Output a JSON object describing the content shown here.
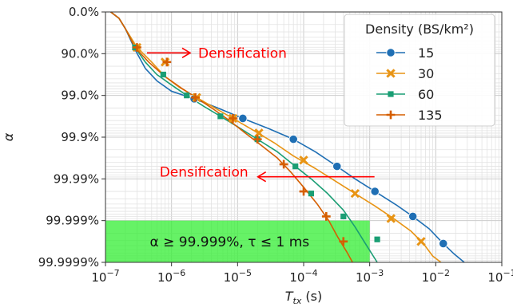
{
  "chart_data": {
    "type": "line",
    "xlabel": "T_tx (s)",
    "ylabel": "α",
    "x_scale": "log",
    "xlim": [
      1e-07,
      0.1
    ],
    "x_ticks": [
      {
        "value": 1e-07,
        "base": "10",
        "exp": "−7"
      },
      {
        "value": 1e-06,
        "base": "10",
        "exp": "−6"
      },
      {
        "value": 1e-05,
        "base": "10",
        "exp": "−5"
      },
      {
        "value": 0.0001,
        "base": "10",
        "exp": "−4"
      },
      {
        "value": 0.001,
        "base": "10",
        "exp": "−3"
      },
      {
        "value": 0.01,
        "base": "10",
        "exp": "−2"
      },
      {
        "value": 0.1,
        "base": "10",
        "exp": "−1"
      }
    ],
    "y_scale": "reliability (nines)",
    "ylim": [
      0,
      6
    ],
    "y_ticks": [
      {
        "value": 0,
        "label": "0.0%"
      },
      {
        "value": 1,
        "label": "90.0%"
      },
      {
        "value": 2,
        "label": "99.0%"
      },
      {
        "value": 3,
        "label": "99.9%"
      },
      {
        "value": 4,
        "label": "99.99%"
      },
      {
        "value": 5,
        "label": "99.999%"
      },
      {
        "value": 6,
        "label": "99.9999%"
      }
    ],
    "grid": true,
    "legend": {
      "title": "Density (BS/km²)",
      "position": "top-right"
    },
    "series": [
      {
        "name": "15",
        "color": "#1f6fb4",
        "marker": "circle",
        "points": [
          [
            1.2e-07,
            0.0
          ],
          [
            1.6e-07,
            0.15
          ],
          [
            2e-07,
            0.4
          ],
          [
            2.8e-07,
            0.9
          ],
          [
            4e-07,
            1.35
          ],
          [
            6e-07,
            1.65
          ],
          [
            1e-06,
            1.9
          ],
          [
            2.2e-06,
            2.08
          ],
          [
            5e-06,
            2.3
          ],
          [
            1.2e-05,
            2.55
          ],
          [
            3e-05,
            2.8
          ],
          [
            7e-05,
            3.05
          ],
          [
            0.00015,
            3.35
          ],
          [
            0.00032,
            3.7
          ],
          [
            0.0006,
            4.0
          ],
          [
            0.0012,
            4.3
          ],
          [
            0.0025,
            4.62
          ],
          [
            0.0045,
            4.9
          ],
          [
            0.008,
            5.2
          ],
          [
            0.013,
            5.55
          ],
          [
            0.019,
            5.8
          ],
          [
            0.027,
            6.0
          ]
        ],
        "markers": [
          [
            2.2e-06,
            2.08
          ],
          [
            1.2e-05,
            2.55
          ],
          [
            7e-05,
            3.05
          ],
          [
            0.00032,
            3.7
          ],
          [
            0.0012,
            4.3
          ],
          [
            0.0045,
            4.9
          ],
          [
            0.013,
            5.55
          ]
        ]
      },
      {
        "name": "30",
        "color": "#e89414",
        "marker": "x",
        "points": [
          [
            1.2e-07,
            0.0
          ],
          [
            1.6e-07,
            0.15
          ],
          [
            2e-07,
            0.4
          ],
          [
            3e-07,
            0.85
          ],
          [
            5e-07,
            1.2
          ],
          [
            8e-07,
            1.55
          ],
          [
            1.3e-06,
            1.8
          ],
          [
            2.4e-06,
            2.05
          ],
          [
            4.5e-06,
            2.3
          ],
          [
            8.5e-06,
            2.55
          ],
          [
            1.8e-05,
            2.85
          ],
          [
            3.7e-05,
            3.15
          ],
          [
            7e-05,
            3.45
          ],
          [
            0.00015,
            3.75
          ],
          [
            0.0003,
            4.05
          ],
          [
            0.0006,
            4.35
          ],
          [
            0.0012,
            4.65
          ],
          [
            0.0023,
            4.95
          ],
          [
            0.0042,
            5.25
          ],
          [
            0.0065,
            5.55
          ],
          [
            0.009,
            5.85
          ],
          [
            0.012,
            6.0
          ]
        ],
        "markers": [
          [
            3e-07,
            0.85
          ],
          [
            8e-07,
            1.2
          ],
          [
            2.4e-06,
            2.05
          ],
          [
            8.5e-06,
            2.55
          ],
          [
            2.1e-05,
            2.9
          ],
          [
            0.0001,
            3.55
          ],
          [
            0.0006,
            4.35
          ],
          [
            0.0021,
            4.95
          ],
          [
            0.006,
            5.5
          ]
        ]
      },
      {
        "name": "60",
        "color": "#1a9e74",
        "marker": "square",
        "points": [
          [
            1.2e-07,
            0.0
          ],
          [
            1.6e-07,
            0.15
          ],
          [
            2e-07,
            0.4
          ],
          [
            2.8e-07,
            0.85
          ],
          [
            4e-07,
            1.2
          ],
          [
            6e-07,
            1.5
          ],
          [
            1e-06,
            1.75
          ],
          [
            1.7e-06,
            2.0
          ],
          [
            3e-06,
            2.25
          ],
          [
            5.5e-06,
            2.5
          ],
          [
            1e-05,
            2.75
          ],
          [
            2e-05,
            3.05
          ],
          [
            4e-05,
            3.35
          ],
          [
            7.5e-05,
            3.7
          ],
          [
            0.00013,
            4.0
          ],
          [
            0.00023,
            4.35
          ],
          [
            0.0004,
            4.75
          ],
          [
            0.0006,
            5.15
          ],
          [
            0.0009,
            5.6
          ],
          [
            0.0013,
            6.0
          ]
        ],
        "markers": [
          [
            2.8e-07,
            0.85
          ],
          [
            7.5e-07,
            1.5
          ],
          [
            1.7e-06,
            2.0
          ],
          [
            5.5e-06,
            2.5
          ],
          [
            2e-05,
            3.05
          ],
          [
            7.5e-05,
            3.7
          ],
          [
            0.00013,
            4.35
          ],
          [
            0.0004,
            4.9
          ],
          [
            0.0013,
            5.45
          ]
        ]
      },
      {
        "name": "135",
        "color": "#d55e00",
        "marker": "plus",
        "points": [
          [
            1.2e-07,
            0.0
          ],
          [
            1.6e-07,
            0.15
          ],
          [
            2e-07,
            0.4
          ],
          [
            2.8e-07,
            0.85
          ],
          [
            4.5e-07,
            1.2
          ],
          [
            8e-07,
            1.55
          ],
          [
            1.4e-06,
            1.82
          ],
          [
            2.5e-06,
            2.08
          ],
          [
            4.5e-06,
            2.35
          ],
          [
            7.5e-06,
            2.6
          ],
          [
            1.3e-05,
            2.9
          ],
          [
            2.3e-05,
            3.2
          ],
          [
            4e-05,
            3.5
          ],
          [
            6.5e-05,
            3.85
          ],
          [
            0.0001,
            4.2
          ],
          [
            0.00016,
            4.6
          ],
          [
            0.00024,
            5.0
          ],
          [
            0.00033,
            5.4
          ],
          [
            0.00045,
            5.75
          ],
          [
            0.00055,
            6.0
          ]
        ],
        "markers": [
          [
            3e-07,
            0.85
          ],
          [
            8.5e-07,
            1.2
          ],
          [
            2.3e-06,
            2.05
          ],
          [
            8.5e-06,
            2.55
          ],
          [
            2e-05,
            3.05
          ],
          [
            5e-05,
            3.65
          ],
          [
            0.0001,
            4.3
          ],
          [
            0.00022,
            4.9
          ],
          [
            0.0004,
            5.5
          ]
        ]
      }
    ],
    "annotations": [
      {
        "text": "Densification",
        "arrow": "right",
        "x": 4.5e-07,
        "y": 1.0
      },
      {
        "text": "Densification",
        "arrow": "left",
        "x": 0.001,
        "y": 3.95
      }
    ],
    "target_region": {
      "label": "α ≥ 99.999%, τ ≤ 1 ms",
      "x_range": [
        1e-07,
        0.001
      ],
      "y_range": [
        5,
        6
      ],
      "color": "#33ee33"
    }
  }
}
